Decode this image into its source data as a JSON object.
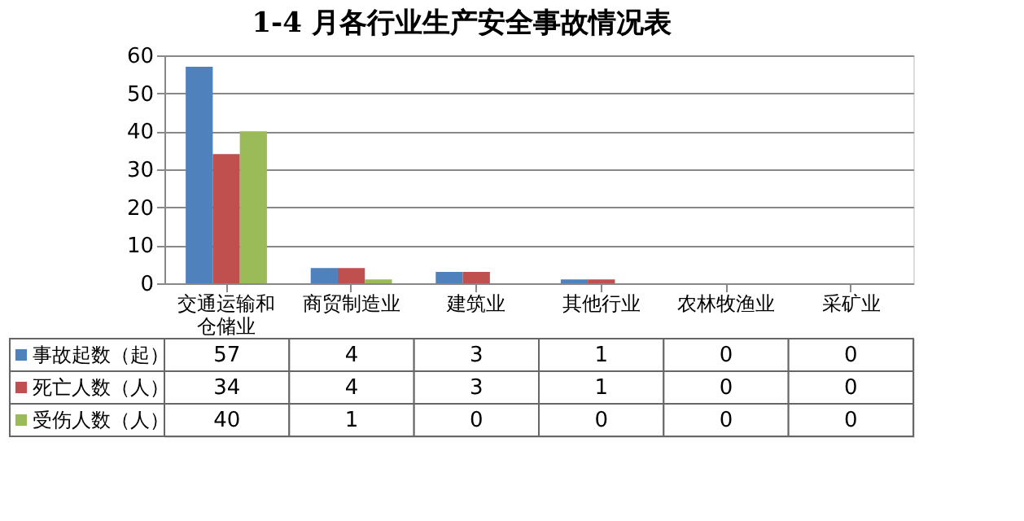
{
  "chart_data": {
    "type": "bar",
    "title": "1-4 月各行业生产安全事故情况表",
    "categories": [
      "交通运输和仓储业",
      "商贸制造业",
      "建筑业",
      "其他行业",
      "农林牧渔业",
      "采矿业"
    ],
    "series": [
      {
        "name": "事故起数（起）",
        "color": "#4f81bd",
        "values": [
          57,
          4,
          3,
          1,
          0,
          0
        ]
      },
      {
        "name": "死亡人数（人）",
        "color": "#c0504d",
        "values": [
          34,
          4,
          3,
          1,
          0,
          0
        ]
      },
      {
        "name": "受伤人数（人）",
        "color": "#9bbb59",
        "values": [
          40,
          1,
          0,
          0,
          0,
          0
        ]
      }
    ],
    "ylim": [
      0,
      60
    ],
    "yticks": [
      0,
      10,
      20,
      30,
      40,
      50,
      60
    ],
    "grid": true,
    "legend": "bottom",
    "data_labels": true
  }
}
